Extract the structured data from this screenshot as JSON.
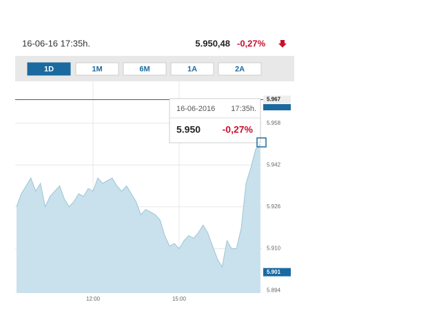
{
  "header": {
    "date": "16-06-16 17:35h.",
    "price": "5.950,48",
    "change": "-0,27%"
  },
  "buttons": [
    "1D",
    "1M",
    "6M",
    "1A",
    "2A"
  ],
  "tooltip": {
    "date": "16-06-2016",
    "time": "17:35h.",
    "value": "5.950",
    "change": "-0,27%"
  },
  "chart_data": {
    "type": "area",
    "categories": [
      null,
      null,
      null,
      null,
      null,
      null,
      null,
      null,
      null,
      null,
      null,
      null,
      null,
      null,
      null,
      null,
      "12:00",
      null,
      null,
      null,
      null,
      null,
      null,
      null,
      null,
      null,
      null,
      null,
      null,
      null,
      null,
      null,
      null,
      null,
      "15:00",
      null,
      null,
      null,
      null,
      null,
      null,
      null,
      null,
      null,
      null,
      null,
      null,
      null,
      null,
      null,
      null,
      null
    ],
    "values": [
      5926,
      5931,
      5934,
      5937,
      5932,
      5935,
      5926,
      5930,
      5932,
      5934,
      5929,
      5926,
      5928,
      5931,
      5930,
      5933,
      5932,
      5937,
      5935,
      5936,
      5937,
      5934,
      5932,
      5934,
      5931,
      5928,
      5923,
      5925,
      5924,
      5923,
      5921,
      5915,
      5911,
      5912,
      5910,
      5913,
      5915,
      5914,
      5916,
      5919,
      5916,
      5911,
      5906,
      5903,
      5913,
      5910,
      5910,
      5918,
      5935,
      5941,
      5948,
      5950
    ],
    "color": "#c9e1ec",
    "ylim": [
      5893,
      5974
    ],
    "yticks": [
      {
        "value": 5894,
        "label": "5.894"
      },
      {
        "value": 5910,
        "label": "5.910"
      },
      {
        "value": 5926,
        "label": "5.926"
      },
      {
        "value": 5942,
        "label": "5.942"
      },
      {
        "value": 5958,
        "label": "5.958"
      }
    ],
    "grid": true,
    "reference_line": {
      "value": 5967,
      "label": "5.967"
    },
    "low_marker": {
      "value": 5901,
      "label": "5.901"
    }
  }
}
